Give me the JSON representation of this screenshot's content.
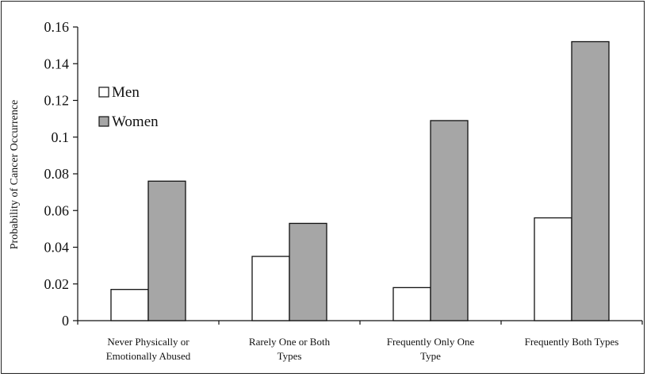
{
  "chart_data": {
    "type": "bar",
    "title": "",
    "xlabel": "",
    "ylabel": "Probability of Cancer Occurrence",
    "ylim": [
      0,
      0.16
    ],
    "yticks": [
      0,
      0.02,
      0.04,
      0.06,
      0.08,
      0.1,
      0.12,
      0.14,
      0.16
    ],
    "ytick_labels": [
      "0",
      "0.02",
      "0.04",
      "0.06",
      "0.08",
      "0.1",
      "0.12",
      "0.14",
      "0.16"
    ],
    "grid": false,
    "legend_position": "upper-left",
    "categories": [
      [
        "Never Physically or",
        "Emotionally Abused"
      ],
      [
        "Rarely One or Both",
        "Types"
      ],
      [
        "Frequently Only One",
        "Type"
      ],
      [
        "Frequently Both Types"
      ]
    ],
    "series": [
      {
        "name": "Men",
        "color": "#ffffff",
        "values": [
          0.017,
          0.035,
          0.018,
          0.056
        ]
      },
      {
        "name": "Women",
        "color": "#a6a6a6",
        "values": [
          0.076,
          0.053,
          0.109,
          0.152
        ]
      }
    ]
  }
}
